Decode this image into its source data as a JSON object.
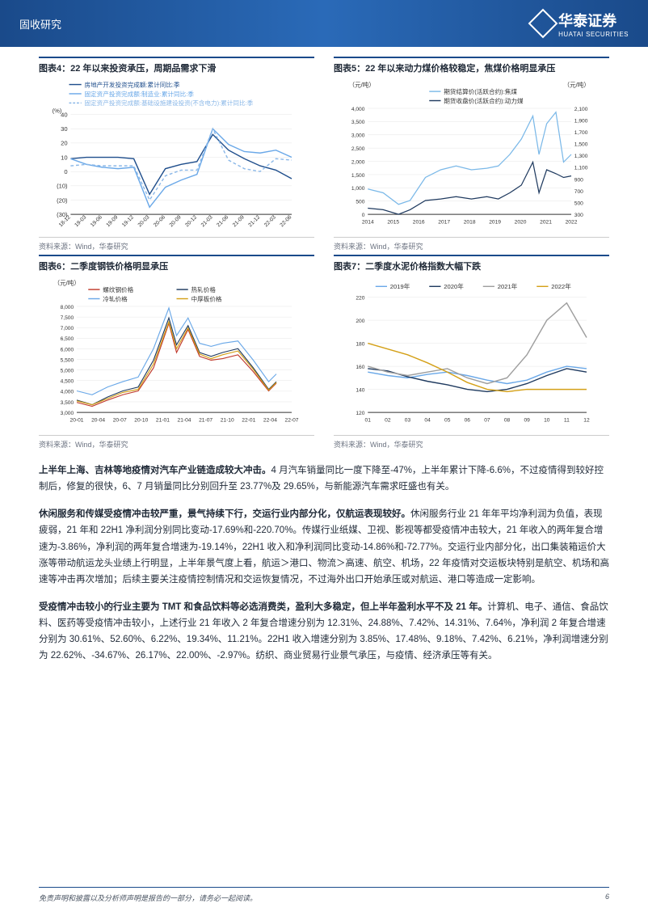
{
  "header": {
    "section": "固收研究",
    "brand_cn": "华泰证券",
    "brand_en": "HUATAI SECURITIES"
  },
  "chart4": {
    "title": "图表4：22 年以来投资承压，周期品需求下滑",
    "source": "资料来源：Wind，华泰研究",
    "type": "line",
    "y_unit": "(%)",
    "series": [
      {
        "name": "房地产开发投资完成额:累计同比:季",
        "color": "#1f4e8c",
        "dash": "0"
      },
      {
        "name": "固定资产投资完成额:制造业:累计同比:季",
        "color": "#6aa8e8",
        "dash": "0"
      },
      {
        "name": "固定资产投资完成额:基础设施建设投资(不含电力):累计同比:季",
        "color": "#8bb8e8",
        "dash": "4,3"
      }
    ],
    "x_labels": [
      "18-12",
      "19-03",
      "19-06",
      "19-09",
      "19-12",
      "20-03",
      "20-06",
      "20-09",
      "20-12",
      "21-03",
      "21-06",
      "21-09",
      "21-12",
      "22-03",
      "22-06"
    ],
    "y_ticks": [
      -30,
      -20,
      -10,
      0,
      10,
      20,
      30,
      40
    ],
    "data": [
      [
        9,
        10,
        10,
        10,
        9,
        -16,
        2,
        5,
        7,
        26,
        15,
        9,
        4,
        1,
        -5
      ],
      [
        9,
        5,
        3,
        2,
        3,
        -25,
        -11,
        -6,
        -2,
        30,
        19,
        14,
        13,
        15,
        10
      ],
      [
        4,
        5,
        4,
        4,
        4,
        -20,
        -3,
        1,
        1,
        30,
        8,
        2,
        0,
        9,
        8
      ]
    ],
    "background_color": "#ffffff",
    "grid_color": "#e5e5e5",
    "axis_color": "#333333",
    "label_fontsize": 8
  },
  "chart5": {
    "title": "图表5：22 年以来动力煤价格较稳定，焦煤价格明显承压",
    "source": "资料来源：Wind，华泰研究",
    "type": "line",
    "y_unit_left": "（元/吨）",
    "y_unit_right": "（元/吨）",
    "series": [
      {
        "name": "期货结算价(活跃合约):焦煤",
        "color": "#7ab8e8"
      },
      {
        "name": "期货收盘价(活跃合约):动力煤",
        "color": "#1f3a5f"
      }
    ],
    "x_labels": [
      "2014",
      "2015",
      "2016",
      "2017",
      "2018",
      "2019",
      "2020",
      "2021",
      "2022"
    ],
    "y_ticks_left": [
      0,
      500,
      1000,
      1500,
      2000,
      2500,
      3000,
      3500,
      4000
    ],
    "y_ticks_right": [
      300,
      500,
      700,
      900,
      1100,
      1300,
      1500,
      1700,
      1900,
      2100
    ],
    "background_color": "#ffffff",
    "grid_color": "#e5e5e5",
    "label_fontsize": 8
  },
  "chart6": {
    "title": "图表6：二季度钢铁价格明显承压",
    "source": "资料来源：Wind，华泰研究",
    "type": "line",
    "y_unit": "（元/吨）",
    "series": [
      {
        "name": "螺纹钢价格",
        "color": "#c0392b"
      },
      {
        "name": "热轧价格",
        "color": "#1f3a5f"
      },
      {
        "name": "冷轧价格",
        "color": "#6aa8e8"
      },
      {
        "name": "中厚板价格",
        "color": "#d4a017"
      }
    ],
    "x_labels": [
      "20-01",
      "20-04",
      "20-07",
      "20-10",
      "21-01",
      "21-04",
      "21-07",
      "21-10",
      "22-01",
      "22-04",
      "22-07"
    ],
    "y_ticks": [
      3000,
      3500,
      4000,
      4500,
      5000,
      5500,
      6000,
      6500,
      7000,
      7500,
      8000
    ],
    "background_color": "#ffffff",
    "grid_color": "#e5e5e5",
    "label_fontsize": 8
  },
  "chart7": {
    "title": "图表7：二季度水泥价格指数大幅下跌",
    "source": "资料来源：Wind，华泰研究",
    "type": "line",
    "series": [
      {
        "name": "2019年",
        "color": "#6aa8e8"
      },
      {
        "name": "2020年",
        "color": "#1f3a5f"
      },
      {
        "name": "2021年",
        "color": "#9e9e9e"
      },
      {
        "name": "2022年",
        "color": "#d4a017"
      }
    ],
    "x_labels": [
      "01",
      "02",
      "03",
      "04",
      "05",
      "06",
      "07",
      "08",
      "09",
      "10",
      "11",
      "12"
    ],
    "y_ticks": [
      120,
      140,
      160,
      180,
      200,
      220
    ],
    "data": [
      [
        155,
        152,
        150,
        153,
        155,
        152,
        148,
        145,
        148,
        155,
        160,
        158
      ],
      [
        158,
        156,
        151,
        147,
        144,
        140,
        138,
        140,
        145,
        152,
        158,
        155
      ],
      [
        160,
        155,
        152,
        155,
        158,
        150,
        145,
        150,
        170,
        200,
        215,
        185
      ],
      [
        180,
        175,
        170,
        163,
        155,
        146,
        140,
        138,
        140,
        140,
        140,
        140
      ]
    ],
    "background_color": "#ffffff",
    "grid_color": "#e5e5e5",
    "label_fontsize": 8
  },
  "paragraphs": {
    "p1_bold": "上半年上海、吉林等地疫情对汽车产业链造成较大冲击。",
    "p1_rest": "4 月汽车销量同比一度下降至-47%，上半年累计下降-6.6%，不过疫情得到较好控制后，修复的很快，6、7 月销量同比分别回升至 23.77%及 29.65%，与新能源汽车需求旺盛也有关。",
    "p2_bold": "休闲服务和传媒受疫情冲击较严重，景气持续下行，交运行业内部分化，仅航运表现较好。",
    "p2_rest": "休闲服务行业 21 年年平均净利润为负值，表现疲弱，21 年和 22H1 净利润分别同比变动-17.69%和-220.70%。传媒行业纸媒、卫视、影视等都受疫情冲击较大，21 年收入的两年复合增速为-3.86%，净利润的两年复合增速为-19.14%，22H1 收入和净利润同比变动-14.86%和-72.77%。交运行业内部分化，出口集装箱运价大涨等带动航运龙头业绩上行明显，上半年景气度上看，航运＞港口、物流＞高速、航空、机场，22 年疫情对交运板块特别是航空、机场和高速等冲击再次增加；后续主要关注疫情控制情况和交运恢复情况，不过海外出口开始承压或对航运、港口等造成一定影响。",
    "p3_bold": "受疫情冲击较小的行业主要为 TMT 和食品饮料等必选消费类，盈利大多稳定，但上半年盈利水平不及 21 年。",
    "p3_rest": "计算机、电子、通信、食品饮料、医药等受疫情冲击较小，上述行业 21 年收入 2 年复合增速分别为 12.31%、24.88%、7.42%、14.31%、7.64%，净利润 2 年复合增速分别为 30.61%、52.60%、6.22%、19.34%、11.21%。22H1 收入增速分别为 3.85%、17.48%、9.18%、7.42%、6.21%，净利润增速分别为 22.62%、-34.67%、26.17%、22.00%、-2.97%。纺织、商业贸易行业景气承压，与疫情、经济承压等有关。"
  },
  "footer": {
    "disclaimer": "免责声明和披露以及分析师声明是报告的一部分，请务必一起阅读。",
    "page": "6"
  }
}
